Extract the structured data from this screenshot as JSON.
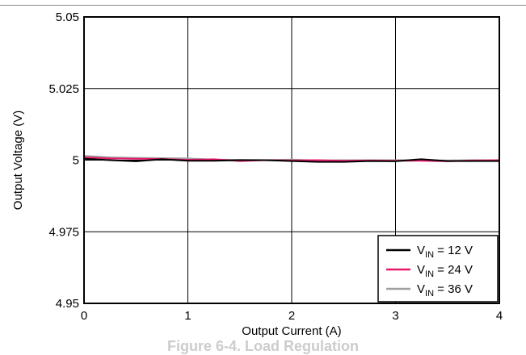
{
  "caption": "Figure 6-4. Load Regulation",
  "chart_data": {
    "type": "line",
    "xlabel": "Output Current (A)",
    "ylabel": "Output Voltage (V)",
    "xlim": [
      0,
      4
    ],
    "ylim": [
      4.95,
      5.05
    ],
    "x_ticks": [
      "0",
      "1",
      "2",
      "3",
      "4"
    ],
    "y_ticks": [
      "4.95",
      "4.975",
      "5",
      "5.025",
      "5.05"
    ],
    "grid": true,
    "legend_position": "bottom-right",
    "series": [
      {
        "name": "12 V",
        "label_prefix": "V",
        "label_sub": "IN",
        "color": "#000000",
        "points": [
          [
            0,
            5.0005
          ],
          [
            0.25,
            5.0
          ],
          [
            0.5,
            4.9996
          ],
          [
            0.75,
            5.0003
          ],
          [
            1.0,
            4.9998
          ],
          [
            1.25,
            4.9998
          ],
          [
            1.5,
            5.0
          ],
          [
            1.75,
            5.0
          ],
          [
            2.0,
            4.9997
          ],
          [
            2.25,
            4.9994
          ],
          [
            2.5,
            4.9994
          ],
          [
            2.75,
            4.9997
          ],
          [
            3.0,
            4.9996
          ],
          [
            3.2,
            5.0002
          ],
          [
            3.25,
            5.0003
          ],
          [
            3.5,
            4.9997
          ],
          [
            3.75,
            4.9997
          ],
          [
            4.0,
            4.9997
          ]
        ]
      },
      {
        "name": "24 V",
        "label_prefix": "V",
        "label_sub": "IN",
        "color": "#e8186d",
        "points": [
          [
            0,
            5.001
          ],
          [
            0.25,
            5.0006
          ],
          [
            0.5,
            5.0005
          ],
          [
            0.75,
            5.0004
          ],
          [
            1.0,
            5.0001
          ],
          [
            1.25,
            5.0003
          ],
          [
            1.5,
            4.9997
          ],
          [
            1.75,
            5.0
          ],
          [
            2.0,
            4.9999
          ],
          [
            2.25,
            5.0
          ],
          [
            2.5,
            4.9998
          ],
          [
            2.75,
            4.9999
          ],
          [
            3.0,
            4.9998
          ],
          [
            3.25,
            4.9998
          ],
          [
            3.5,
            4.9996
          ],
          [
            3.75,
            4.9999
          ],
          [
            4.0,
            5.0
          ]
        ]
      },
      {
        "name": "36 V",
        "label_prefix": "V",
        "label_sub": "IN",
        "color": "#a0a0a0",
        "points": [
          [
            0,
            5.0015
          ],
          [
            0.25,
            5.001
          ],
          [
            0.5,
            5.0008
          ],
          [
            0.75,
            5.0007
          ],
          [
            1.0,
            5.0006
          ],
          [
            1.25,
            5.0002
          ],
          [
            1.5,
            5.0001
          ],
          [
            1.75,
            5.0
          ],
          [
            2.0,
            5.0002
          ],
          [
            2.25,
            4.9999
          ],
          [
            2.5,
            5.0
          ],
          [
            2.75,
            5.0
          ],
          [
            3.0,
            5.0
          ],
          [
            3.25,
            5.0
          ],
          [
            3.5,
            4.9999
          ],
          [
            3.75,
            5.0
          ],
          [
            4.0,
            4.9999
          ]
        ]
      }
    ]
  }
}
